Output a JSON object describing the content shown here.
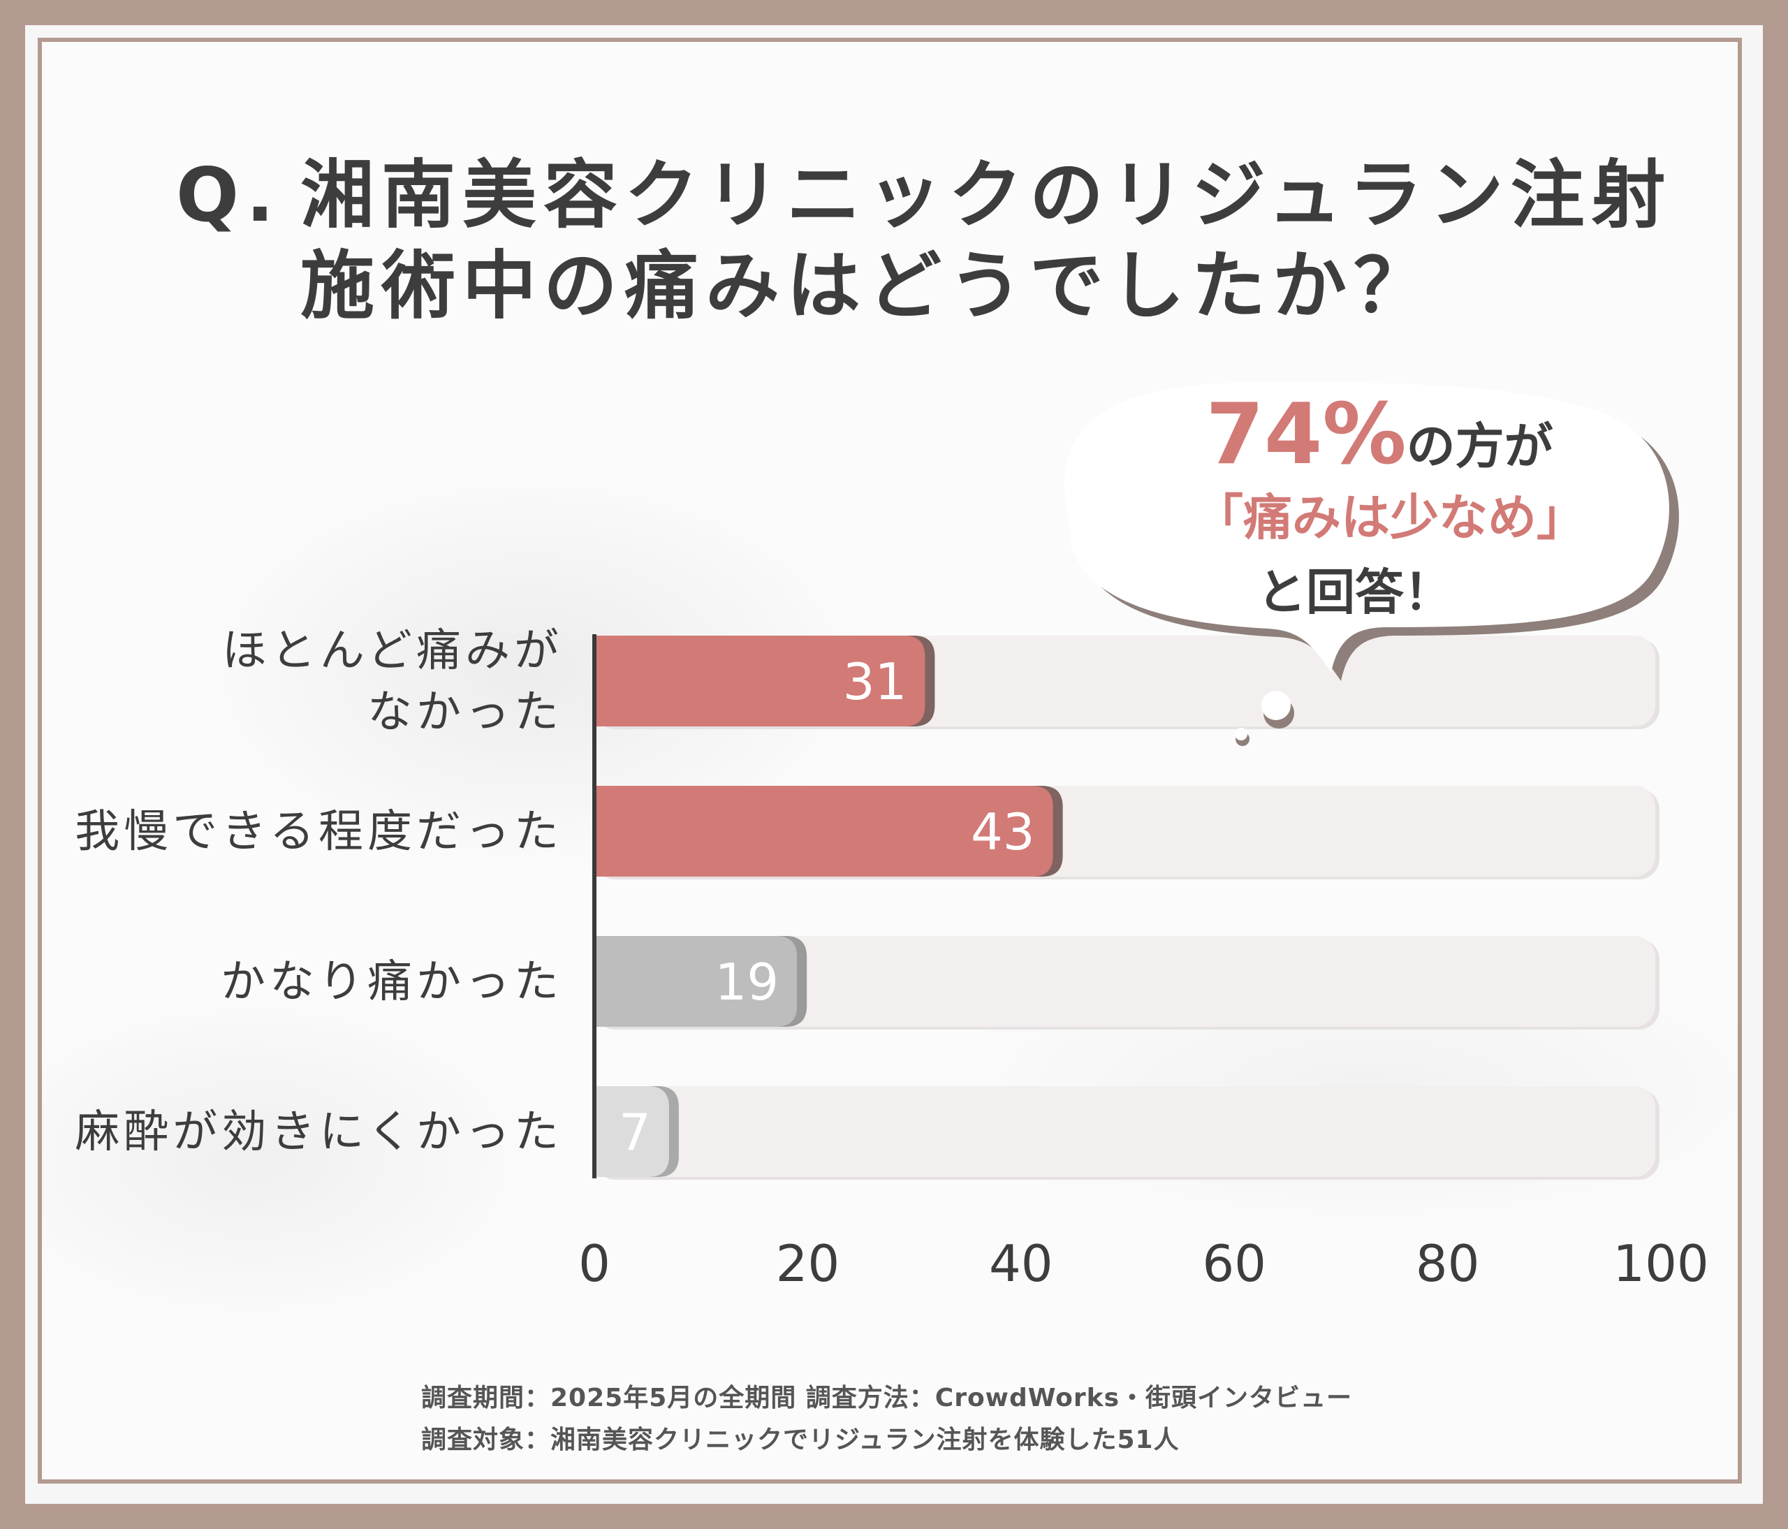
{
  "title": {
    "q": "Q.",
    "line1": "湘南美容クリニックのリジュラン注射",
    "line2": "施術中の痛みはどうでしたか？"
  },
  "callout": {
    "percent": "74%",
    "line1_rest": "の方が",
    "line2": "「痛みは少なめ」",
    "line3": "と回答！"
  },
  "footer": {
    "line1": "調査期間：2025年5月の全期間 調査方法：CrowdWorks・街頭インタビュー",
    "line2": "調査対象：湘南美容クリニックでリジュラン注射を体験した51人"
  },
  "colors": {
    "accent": "#d27a76",
    "gray": "#bdbdbd",
    "lightgray": "#dcdcdc",
    "track": "#f3efee",
    "frame": "#b39a91"
  },
  "chart_data": {
    "type": "bar",
    "orientation": "horizontal",
    "categories": [
      [
        "ほとんど痛みが",
        "なかった"
      ],
      [
        "我慢できる程度だった"
      ],
      [
        "かなり痛かった"
      ],
      [
        "麻酔が効きにくかった"
      ]
    ],
    "values": [
      31,
      43,
      19,
      7
    ],
    "xlim": [
      0,
      100
    ],
    "xticks": [
      "0",
      "20",
      "40",
      "60",
      "80",
      "100"
    ],
    "grid": false
  }
}
